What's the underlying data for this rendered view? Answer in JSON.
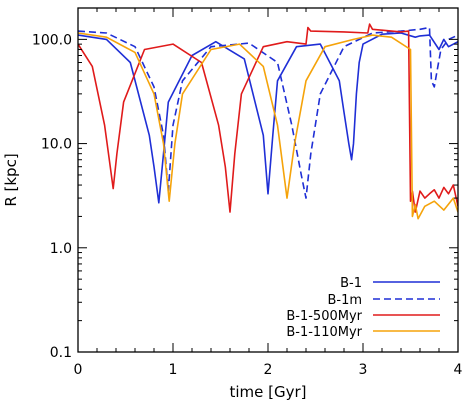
{
  "chart_data": {
    "type": "line",
    "title": "",
    "xlabel": "time [Gyr]",
    "ylabel": "R [kpc]",
    "xlim": [
      0,
      4
    ],
    "ylim": [
      0.1,
      200
    ],
    "yscale": "log",
    "grid": false,
    "legend_position": "bottom-right",
    "x_ticks": [
      0,
      1,
      2,
      3,
      4
    ],
    "x_tick_labels": [
      "0",
      "1",
      "2",
      "3",
      "4"
    ],
    "y_ticks": [
      0.1,
      1.0,
      10.0,
      100.0
    ],
    "y_tick_labels": [
      "0.1",
      "1.0",
      "10.0",
      "100.0"
    ],
    "series": [
      {
        "name": "B-1",
        "color": "#1f2fd6",
        "dash": "solid",
        "x": [
          0,
          0.3,
          0.55,
          0.75,
          0.8,
          0.85,
          0.9,
          0.95,
          1.2,
          1.45,
          1.75,
          1.95,
          2.0,
          2.05,
          2.1,
          2.3,
          2.55,
          2.75,
          2.8,
          2.85,
          2.88,
          2.9,
          2.93,
          2.96,
          3.0,
          3.2,
          3.4,
          3.55,
          3.6,
          3.7,
          3.8,
          3.85,
          3.9,
          4.0
        ],
        "y": [
          110,
          100,
          60,
          12,
          6,
          2.7,
          8,
          25,
          70,
          95,
          65,
          12,
          3.3,
          12,
          40,
          85,
          90,
          40,
          20,
          10,
          7,
          10,
          30,
          60,
          90,
          112,
          115,
          105,
          108,
          110,
          80,
          100,
          85,
          95
        ]
      },
      {
        "name": "B-1m",
        "color": "#1f2fd6",
        "dash": "dashed",
        "x": [
          0,
          0.3,
          0.6,
          0.8,
          0.9,
          0.95,
          1.0,
          1.1,
          1.4,
          1.8,
          2.1,
          2.25,
          2.35,
          2.4,
          2.45,
          2.55,
          2.8,
          3.1,
          3.4,
          3.6,
          3.7,
          3.72,
          3.75,
          3.78,
          3.82,
          3.9,
          4.0
        ],
        "y": [
          120,
          115,
          85,
          35,
          12,
          3.5,
          15,
          40,
          85,
          92,
          60,
          15,
          5,
          3.0,
          8,
          30,
          85,
          115,
          120,
          125,
          130,
          40,
          35,
          50,
          80,
          100,
          110
        ]
      },
      {
        "name": "B-1-500Myr",
        "color": "#e01b1b",
        "dash": "solid",
        "x": [
          0,
          0.15,
          0.28,
          0.33,
          0.37,
          0.41,
          0.48,
          0.7,
          1.0,
          1.3,
          1.48,
          1.55,
          1.6,
          1.65,
          1.72,
          1.95,
          2.2,
          2.4,
          2.42,
          2.45,
          2.8,
          3.05,
          3.07,
          3.1,
          3.4,
          3.48,
          3.5,
          3.52,
          3.55,
          3.6,
          3.65,
          3.7,
          3.75,
          3.8,
          3.85,
          3.9,
          3.95,
          4.0
        ],
        "y": [
          90,
          55,
          15,
          7,
          3.7,
          8,
          25,
          80,
          90,
          60,
          15,
          6,
          2.2,
          8,
          30,
          85,
          95,
          90,
          130,
          120,
          118,
          115,
          140,
          125,
          118,
          120,
          2.8,
          3.5,
          2.2,
          3.5,
          3.0,
          3.3,
          3.6,
          3.0,
          3.8,
          3.3,
          4.0,
          2.5
        ]
      },
      {
        "name": "B-1-110Myr",
        "color": "#f5a30a",
        "dash": "solid",
        "x": [
          0,
          0.3,
          0.6,
          0.8,
          0.9,
          0.96,
          1.02,
          1.1,
          1.4,
          1.7,
          1.95,
          2.1,
          2.2,
          2.28,
          2.4,
          2.6,
          2.9,
          3.1,
          3.3,
          3.5,
          3.52,
          3.55,
          3.58,
          3.65,
          3.75,
          3.85,
          3.95,
          4.0
        ],
        "y": [
          115,
          105,
          75,
          30,
          10,
          2.8,
          10,
          30,
          80,
          90,
          55,
          15,
          3.0,
          10,
          40,
          85,
          100,
          110,
          105,
          80,
          2.0,
          2.6,
          1.9,
          2.5,
          2.8,
          2.3,
          3.0,
          2.2
        ]
      }
    ]
  }
}
